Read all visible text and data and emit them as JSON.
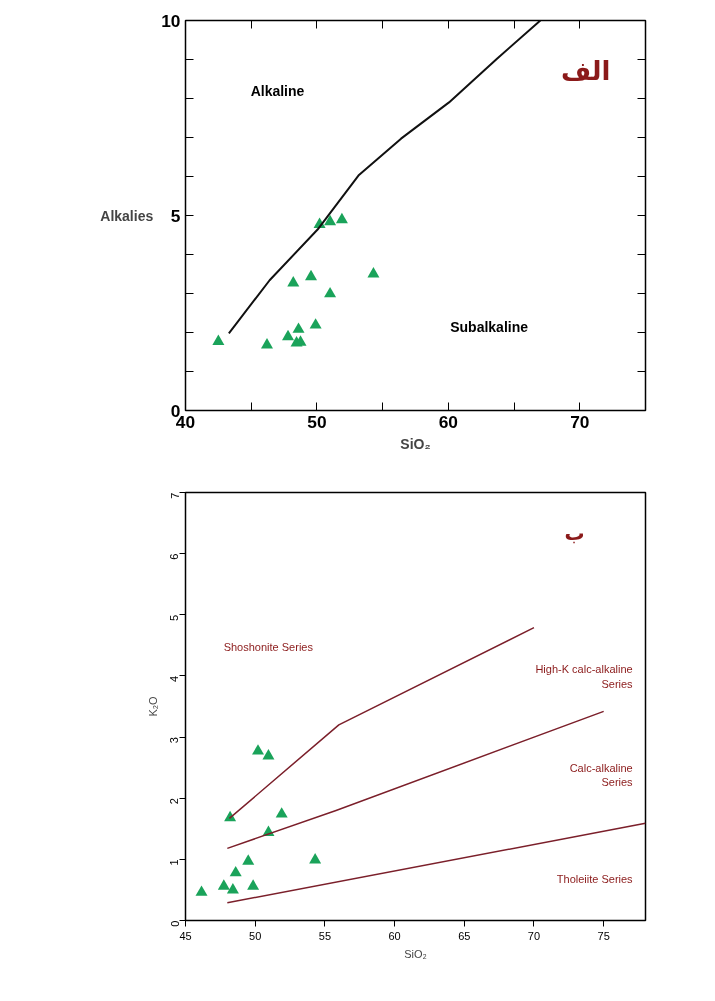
{
  "chart_data": [
    {
      "type": "scatter",
      "xlabel": "SiO₂",
      "ylabel": "Alkalies",
      "xlim": [
        40,
        75
      ],
      "ylim": [
        0,
        10
      ],
      "xticks": [
        40,
        {
          "value": 45,
          "label": null
        },
        50,
        {
          "value": 55,
          "label": null
        },
        60,
        {
          "value": 65,
          "label": null
        },
        70
      ],
      "yticks": [
        0,
        {
          "value": 1,
          "label": null
        },
        {
          "value": 2,
          "label": null
        },
        {
          "value": 3,
          "label": null
        },
        {
          "value": 4,
          "label": null
        },
        5,
        {
          "value": 6,
          "label": null
        },
        {
          "value": 7,
          "label": null
        },
        {
          "value": 8,
          "label": null
        },
        {
          "value": 9,
          "label": null
        },
        10
      ],
      "grid": false,
      "annotations": [
        "الف",
        "Alkaline",
        "Subalkaline"
      ],
      "series": [
        {
          "marker": "triangle",
          "color": "#1aa35a",
          "x": [
            42.5,
            46.2,
            47.8,
            48.2,
            48.6,
            48.45,
            48.75,
            49.55,
            49.9,
            50.2,
            51.0,
            51.0,
            51.9,
            54.3
          ],
          "values": [
            1.77,
            1.68,
            1.89,
            3.27,
            2.08,
            1.73,
            1.75,
            3.43,
            2.19,
            4.77,
            4.84,
            2.99,
            4.89,
            3.5
          ]
        },
        {
          "type": "line",
          "color": "#111111",
          "x": [
            43.3,
            46.4,
            50.05,
            53.2,
            56.4,
            60.05,
            63.7,
            67.0
          ],
          "values": [
            1.98,
            3.34,
            4.64,
            6.04,
            6.97,
            7.9,
            9.02,
            10.0
          ]
        }
      ]
    },
    {
      "type": "scatter",
      "xlabel": "SiO₂",
      "ylabel": "K₂O",
      "xlim": [
        45,
        78
      ],
      "ylim": [
        0,
        7
      ],
      "xticks": [
        45,
        50,
        55,
        60,
        65,
        70,
        75
      ],
      "yticks": [
        0,
        1,
        2,
        3,
        4,
        5,
        6,
        7
      ],
      "grid": false,
      "annotations": [
        "ب",
        "Shoshonite Series",
        "High-K calc-alkaline\nSeries",
        "Calc-alkaline\nSeries",
        "Tholeiite Series"
      ],
      "series": [
        {
          "marker": "triangle",
          "color": "#1aa35a",
          "x": [
            46.15,
            47.75,
            48.4,
            48.6,
            48.2,
            49.5,
            49.85,
            50.2,
            50.95,
            50.95,
            51.9,
            54.3
          ],
          "values": [
            0.46,
            0.56,
            0.5,
            0.78,
            1.68,
            0.97,
            0.56,
            2.77,
            2.69,
            1.44,
            1.74,
            0.99
          ]
        },
        {
          "type": "line",
          "color": "#7b1f2a",
          "x": [
            48.15,
            56.0,
            70.0
          ],
          "values": [
            1.67,
            3.2,
            4.79
          ]
        },
        {
          "type": "line",
          "color": "#7b1f2a",
          "x": [
            48.0,
            55.8,
            75.0
          ],
          "values": [
            1.18,
            1.8,
            3.42
          ]
        },
        {
          "type": "line",
          "color": "#7b1f2a",
          "x": [
            48.0,
            78.0
          ],
          "values": [
            0.29,
            1.59
          ]
        }
      ]
    }
  ]
}
